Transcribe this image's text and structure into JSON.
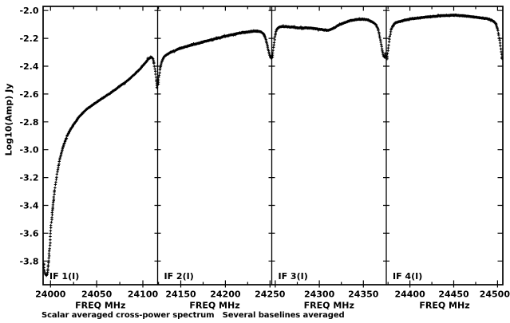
{
  "caption": "Scalar averaged cross-power spectrum   Several baselines averaged",
  "chart_data": {
    "type": "line",
    "title": "Scalar averaged cross-power spectrum   Several baselines averaged",
    "xlabel": "FREQ MHz",
    "ylabel": "Log10(Amp) Jy",
    "ylim": [
      -3.97,
      -1.97
    ],
    "yticks": [
      -2.0,
      -2.2,
      -2.4,
      -2.6,
      -2.8,
      -3.0,
      -3.2,
      -3.4,
      -3.6,
      -3.8
    ],
    "grid": false,
    "legend": false,
    "line_color": "#000000",
    "background": "#ffffff",
    "panels": [
      {
        "label": "IF 1(I)",
        "xlim": [
          23992,
          24116
        ],
        "xticks": [
          {
            "f": 24000,
            "label": "24000"
          },
          {
            "f": 24050,
            "label": "24050"
          },
          {
            "f": 24100,
            "label": "24100"
          }
        ],
        "xticks_minor": [
          24025,
          24075
        ],
        "points": [
          [
            23992.3,
            -3.82
          ],
          [
            23993.5,
            -3.875
          ],
          [
            23995,
            -3.905
          ],
          [
            23996.5,
            -3.895
          ],
          [
            23997.5,
            -3.84
          ],
          [
            23998.5,
            -3.76
          ],
          [
            23999.5,
            -3.67
          ],
          [
            24000.5,
            -3.565
          ],
          [
            24001.5,
            -3.48
          ],
          [
            24003,
            -3.375
          ],
          [
            24004.5,
            -3.29
          ],
          [
            24006,
            -3.22
          ],
          [
            24008,
            -3.14
          ],
          [
            24010,
            -3.07
          ],
          [
            24013,
            -2.995
          ],
          [
            24016,
            -2.935
          ],
          [
            24019,
            -2.885
          ],
          [
            24023,
            -2.84
          ],
          [
            24027,
            -2.8
          ],
          [
            24032,
            -2.755
          ],
          [
            24038,
            -2.715
          ],
          [
            24044,
            -2.685
          ],
          [
            24050,
            -2.658
          ],
          [
            24058,
            -2.622
          ],
          [
            24067,
            -2.583
          ],
          [
            24075,
            -2.543
          ],
          [
            24084,
            -2.5
          ],
          [
            24092,
            -2.452
          ],
          [
            24098,
            -2.412
          ],
          [
            24103,
            -2.372
          ],
          [
            24106,
            -2.348
          ],
          [
            24109,
            -2.336
          ],
          [
            24110.5,
            -2.342
          ],
          [
            24112,
            -2.378
          ],
          [
            24113.5,
            -2.44
          ],
          [
            24115,
            -2.515
          ],
          [
            24116,
            -2.552
          ]
        ]
      },
      {
        "label": "IF 2(I)",
        "xlim": [
          24124,
          24252
        ],
        "xticks": [
          {
            "f": 24150,
            "label": "24150"
          },
          {
            "f": 24200,
            "label": "24200"
          },
          {
            "f": 24250,
            "label": "24250"
          }
        ],
        "xticks_minor": [
          24125,
          24175,
          24225
        ],
        "points": [
          [
            24124,
            -2.53
          ],
          [
            24125.5,
            -2.475
          ],
          [
            24127,
            -2.415
          ],
          [
            24129,
            -2.362
          ],
          [
            24131,
            -2.335
          ],
          [
            24134,
            -2.317
          ],
          [
            24138,
            -2.302
          ],
          [
            24143,
            -2.288
          ],
          [
            24149,
            -2.272
          ],
          [
            24155,
            -2.26
          ],
          [
            24161,
            -2.25
          ],
          [
            24168,
            -2.238
          ],
          [
            24175,
            -2.226
          ],
          [
            24182,
            -2.214
          ],
          [
            24189,
            -2.202
          ],
          [
            24196,
            -2.191
          ],
          [
            24203,
            -2.18
          ],
          [
            24210,
            -2.17
          ],
          [
            24216,
            -2.162
          ],
          [
            24222,
            -2.156
          ],
          [
            24228,
            -2.151
          ],
          [
            24233,
            -2.148
          ],
          [
            24237,
            -2.147
          ],
          [
            24240,
            -2.153
          ],
          [
            24242.5,
            -2.165
          ],
          [
            24244.5,
            -2.19
          ],
          [
            24246.5,
            -2.235
          ],
          [
            24248.5,
            -2.29
          ],
          [
            24250,
            -2.325
          ],
          [
            24251,
            -2.34
          ],
          [
            24252,
            -2.335
          ]
        ]
      },
      {
        "label": "IF 3(I)",
        "xlim": [
          24246,
          24376
        ],
        "xticks": [
          {
            "f": 24250,
            "label": ""
          },
          {
            "f": 24300,
            "label": "24300"
          },
          {
            "f": 24350,
            "label": "24350"
          }
        ],
        "xticks_minor": [
          24275,
          24325
        ],
        "points": [
          [
            24246,
            -2.335
          ],
          [
            24247,
            -2.3
          ],
          [
            24248.5,
            -2.235
          ],
          [
            24250,
            -2.175
          ],
          [
            24251.5,
            -2.138
          ],
          [
            24253.5,
            -2.122
          ],
          [
            24256,
            -2.116
          ],
          [
            24260,
            -2.114
          ],
          [
            24265,
            -2.117
          ],
          [
            24270,
            -2.12
          ],
          [
            24275,
            -2.124
          ],
          [
            24280,
            -2.127
          ],
          [
            24285,
            -2.124
          ],
          [
            24290,
            -2.126
          ],
          [
            24295,
            -2.13
          ],
          [
            24300,
            -2.134
          ],
          [
            24305,
            -2.139
          ],
          [
            24309,
            -2.142
          ],
          [
            24313,
            -2.137
          ],
          [
            24317,
            -2.124
          ],
          [
            24321,
            -2.108
          ],
          [
            24326,
            -2.093
          ],
          [
            24331,
            -2.081
          ],
          [
            24336,
            -2.072
          ],
          [
            24341,
            -2.066
          ],
          [
            24346,
            -2.062
          ],
          [
            24351,
            -2.063
          ],
          [
            24355,
            -2.068
          ],
          [
            24359,
            -2.077
          ],
          [
            24362,
            -2.088
          ],
          [
            24365,
            -2.108
          ],
          [
            24367,
            -2.142
          ],
          [
            24369,
            -2.202
          ],
          [
            24371,
            -2.272
          ],
          [
            24372.5,
            -2.318
          ],
          [
            24374,
            -2.337
          ],
          [
            24376,
            -2.31
          ]
        ]
      },
      {
        "label": "IF 4(I)",
        "xlim": [
          24373,
          24506
        ],
        "xticks": [
          {
            "f": 24400,
            "label": "24400"
          },
          {
            "f": 24450,
            "label": "24450"
          },
          {
            "f": 24500,
            "label": "24500"
          }
        ],
        "xticks_minor": [
          24375,
          24425,
          24475
        ],
        "points": [
          [
            24373,
            -2.345
          ],
          [
            24374,
            -2.325
          ],
          [
            24375.5,
            -2.26
          ],
          [
            24377,
            -2.19
          ],
          [
            24378.5,
            -2.138
          ],
          [
            24380.5,
            -2.108
          ],
          [
            24383,
            -2.09
          ],
          [
            24386,
            -2.082
          ],
          [
            24390,
            -2.076
          ],
          [
            24395,
            -2.068
          ],
          [
            24400,
            -2.061
          ],
          [
            24406,
            -2.056
          ],
          [
            24412,
            -2.051
          ],
          [
            24419,
            -2.047
          ],
          [
            24426,
            -2.043
          ],
          [
            24433,
            -2.039
          ],
          [
            24440,
            -2.036
          ],
          [
            24447,
            -2.034
          ],
          [
            24453,
            -2.034
          ],
          [
            24459,
            -2.037
          ],
          [
            24465,
            -2.041
          ],
          [
            24471,
            -2.045
          ],
          [
            24477,
            -2.049
          ],
          [
            24483,
            -2.054
          ],
          [
            24489,
            -2.06
          ],
          [
            24493,
            -2.068
          ],
          [
            24496,
            -2.08
          ],
          [
            24498.5,
            -2.1
          ],
          [
            24500.5,
            -2.145
          ],
          [
            24502.5,
            -2.22
          ],
          [
            24504,
            -2.29
          ],
          [
            24505.2,
            -2.34
          ],
          [
            24506,
            -2.345
          ]
        ]
      }
    ]
  }
}
